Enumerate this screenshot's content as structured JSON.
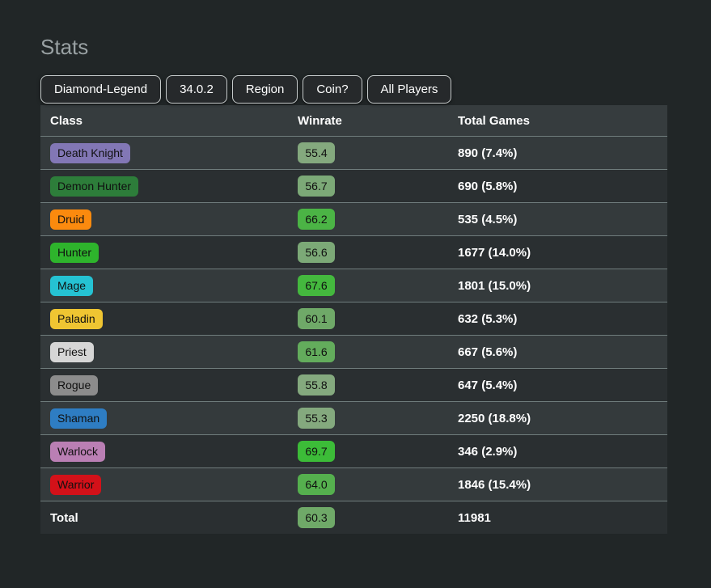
{
  "page": {
    "title": "Stats"
  },
  "theme": {
    "background": "#212627",
    "row_light": "#343a3c",
    "row_dark": "#2a2f31",
    "header_bg": "#363c3e",
    "separator": "#6f7c7c",
    "button_border": "#c6cbcb"
  },
  "filters": [
    {
      "label": "Diamond-Legend"
    },
    {
      "label": "34.0.2"
    },
    {
      "label": "Region"
    },
    {
      "label": "Coin?"
    },
    {
      "label": "All Players"
    }
  ],
  "table": {
    "headers": {
      "class": "Class",
      "winrate": "Winrate",
      "total_games": "Total Games"
    },
    "rows": [
      {
        "class": "Death Knight",
        "class_color": "#8277b5",
        "winrate": "55.4",
        "winrate_color": "#84a97e",
        "total_games": "890 (7.4%)"
      },
      {
        "class": "Demon Hunter",
        "class_color": "#2d7d3a",
        "winrate": "56.7",
        "winrate_color": "#7ca977",
        "total_games": "690 (5.8%)"
      },
      {
        "class": "Druid",
        "class_color": "#fb8a0e",
        "winrate": "66.2",
        "winrate_color": "#4bb445",
        "total_games": "535 (4.5%)"
      },
      {
        "class": "Hunter",
        "class_color": "#2eb42c",
        "winrate": "56.6",
        "winrate_color": "#7ca977",
        "total_games": "1677 (14.0%)"
      },
      {
        "class": "Mage",
        "class_color": "#25c2d3",
        "winrate": "67.6",
        "winrate_color": "#44b83e",
        "total_games": "1801 (15.0%)"
      },
      {
        "class": "Paladin",
        "class_color": "#efc532",
        "winrate": "60.1",
        "winrate_color": "#6fa968",
        "total_games": "632 (5.3%)"
      },
      {
        "class": "Priest",
        "class_color": "#d6d6d6",
        "winrate": "61.6",
        "winrate_color": "#63ac5c",
        "total_games": "667 (5.6%)"
      },
      {
        "class": "Rogue",
        "class_color": "#8c8c8c",
        "winrate": "55.8",
        "winrate_color": "#84a97e",
        "total_games": "647 (5.4%)"
      },
      {
        "class": "Shaman",
        "class_color": "#2e7dc3",
        "winrate": "55.3",
        "winrate_color": "#84a97e",
        "total_games": "2250 (18.8%)"
      },
      {
        "class": "Warlock",
        "class_color": "#ba7fb4",
        "winrate": "69.7",
        "winrate_color": "#3cbc38",
        "total_games": "346 (2.9%)"
      },
      {
        "class": "Warrior",
        "class_color": "#d31119",
        "winrate": "64.0",
        "winrate_color": "#55b04e",
        "total_games": "1846 (15.4%)"
      }
    ],
    "total_row": {
      "label": "Total",
      "winrate": "60.3",
      "winrate_color": "#6fa968",
      "total_games": "11981"
    }
  }
}
